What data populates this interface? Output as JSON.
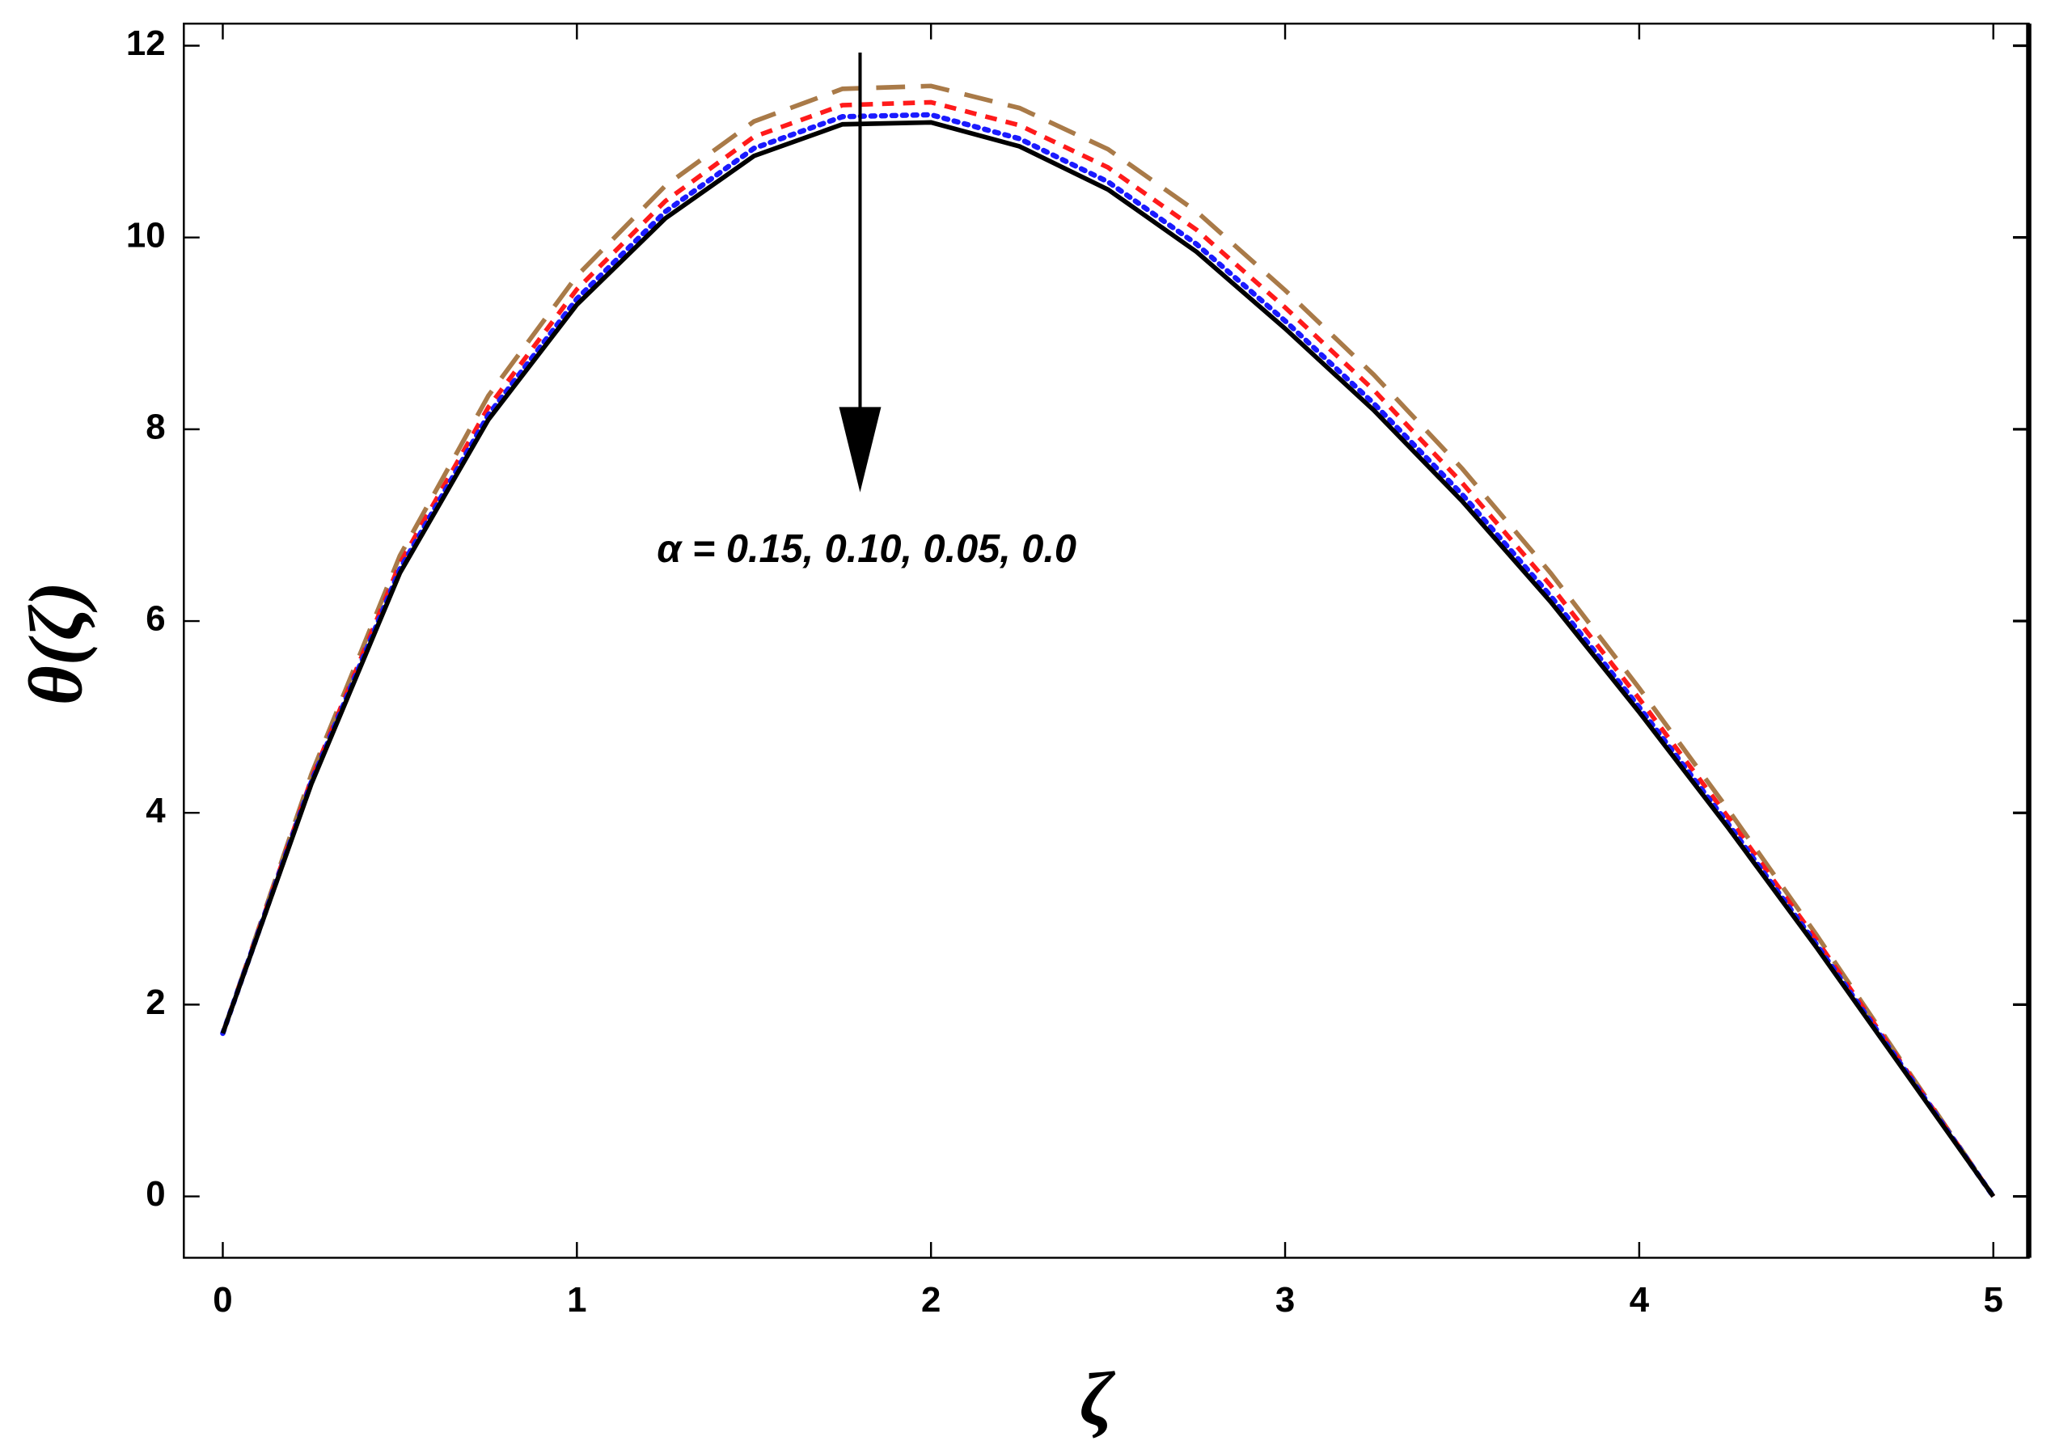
{
  "chart_data": {
    "type": "line",
    "xlabel": "ζ",
    "ylabel": "θ(ζ)",
    "annotation": "α = 0.15, 0.10, 0.05, 0.0",
    "x": [
      0,
      0.25,
      0.5,
      0.75,
      1,
      1.25,
      1.5,
      1.75,
      2,
      2.25,
      2.5,
      2.75,
      3,
      3.25,
      3.5,
      3.75,
      4,
      4.25,
      4.5,
      4.75,
      5
    ],
    "series": [
      {
        "color": "#a97a48",
        "dash": "long-dash",
        "values": [
          1.7,
          4.4,
          6.68,
          8.35,
          9.6,
          10.54,
          11.21,
          11.55,
          11.58,
          11.35,
          10.92,
          10.27,
          9.45,
          8.57,
          7.59,
          6.5,
          5.3,
          4.04,
          2.73,
          1.36,
          0
        ]
      },
      {
        "color": "#ff1a1a",
        "dash": "short-dash",
        "values": [
          1.7,
          4.35,
          6.6,
          8.23,
          9.46,
          10.38,
          11.05,
          11.38,
          11.41,
          11.17,
          10.73,
          10.08,
          9.27,
          8.41,
          7.44,
          6.37,
          5.19,
          3.96,
          2.68,
          1.34,
          0
        ]
      },
      {
        "color": "#1a1aff",
        "dash": "dotted",
        "values": [
          1.7,
          4.32,
          6.54,
          8.15,
          9.36,
          10.27,
          10.93,
          11.26,
          11.28,
          11.03,
          10.58,
          9.93,
          9.13,
          8.27,
          7.32,
          6.26,
          5.1,
          3.89,
          2.63,
          1.32,
          0
        ]
      },
      {
        "color": "#000000",
        "dash": "solid",
        "values": [
          1.7,
          4.3,
          6.5,
          8.1,
          9.3,
          10.2,
          10.85,
          11.18,
          11.2,
          10.95,
          10.5,
          9.85,
          9.05,
          8.2,
          7.25,
          6.2,
          5.05,
          3.85,
          2.6,
          1.3,
          0
        ]
      }
    ],
    "xlim": [
      -0.11,
      5.1
    ],
    "ylim": [
      -0.64,
      12.23
    ],
    "xticks": [
      0,
      1,
      2,
      3,
      4,
      5
    ],
    "yticks": [
      0,
      2,
      4,
      6,
      8,
      10,
      12
    ]
  }
}
